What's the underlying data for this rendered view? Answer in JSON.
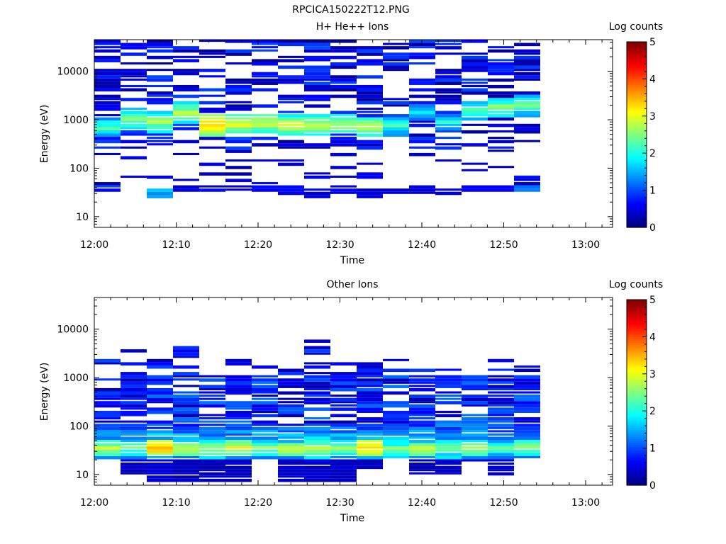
{
  "figure_title": "RPCICA150222T12.PNG",
  "chart_data": [
    {
      "type": "heatmap",
      "title": "H+ He++ Ions",
      "xlabel": "Time",
      "ylabel": "Energy (eV)",
      "xticks": [
        "12:00",
        "12:10",
        "12:20",
        "12:30",
        "12:40",
        "12:50",
        "13:00"
      ],
      "yticks": [
        "10",
        "100",
        "1000",
        "10000"
      ],
      "yscale": "log",
      "ylim": [
        6,
        45000
      ],
      "colorbar": {
        "label": "Log counts",
        "ticks": [
          "0",
          "1",
          "2",
          "3",
          "4",
          "5"
        ],
        "range": [
          0,
          5
        ]
      },
      "profile": {
        "peak_energy_eV": [
          700,
          1000,
          900,
          1400,
          750,
          800,
          850,
          750,
          750,
          800,
          700,
          750,
          1500,
          900,
          1500,
          1800,
          2000
        ],
        "peak_level": [
          2.3,
          2.5,
          2.7,
          2.8,
          3.5,
          3.0,
          2.9,
          3.0,
          2.9,
          2.8,
          3.0,
          2.2,
          1.8,
          2.0,
          2.4,
          2.6,
          2.4
        ],
        "low_energy_band_eV": [
          38,
          0,
          30,
          40,
          40,
          38,
          38,
          35,
          30,
          35,
          30,
          33,
          35,
          33,
          40,
          40,
          38
        ],
        "low_energy_level": [
          0.6,
          0,
          1.3,
          0.3,
          0.3,
          0.3,
          0.3,
          0.3,
          0.3,
          0.3,
          0.3,
          0.3,
          0.3,
          0.3,
          0.3,
          0.3,
          1.0
        ]
      }
    },
    {
      "type": "heatmap",
      "title": "Other Ions",
      "xlabel": "Time",
      "ylabel": "Energy (eV)",
      "xticks": [
        "12:00",
        "12:10",
        "12:20",
        "12:30",
        "12:40",
        "12:50",
        "13:00"
      ],
      "yticks": [
        "10",
        "100",
        "1000",
        "10000"
      ],
      "yscale": "log",
      "ylim": [
        6,
        45000
      ],
      "colorbar": {
        "label": "Log counts",
        "ticks": [
          "0",
          "1",
          "2",
          "3",
          "4",
          "5"
        ],
        "range": [
          0,
          5
        ]
      },
      "profile": {
        "peak_energy_eV": [
          35,
          35,
          36,
          33,
          33,
          35,
          35,
          33,
          35,
          35,
          36,
          33,
          33,
          35,
          33,
          35,
          38
        ],
        "peak_level": [
          2.9,
          2.5,
          3.6,
          3.0,
          2.8,
          3.1,
          2.6,
          3.0,
          2.8,
          2.6,
          3.5,
          2.6,
          2.9,
          2.6,
          2.8,
          2.3,
          2.8
        ],
        "max_energy_eV": [
          2500,
          4500,
          2500,
          4500,
          2200,
          2300,
          2000,
          2000,
          6500,
          2000,
          2200,
          2300,
          2200,
          2500,
          3000,
          2800,
          3000
        ],
        "low_edge_eV": [
          22,
          10,
          7,
          7,
          7,
          7,
          20,
          7,
          7,
          7,
          12,
          20,
          10,
          10,
          18,
          10,
          20
        ]
      }
    }
  ]
}
